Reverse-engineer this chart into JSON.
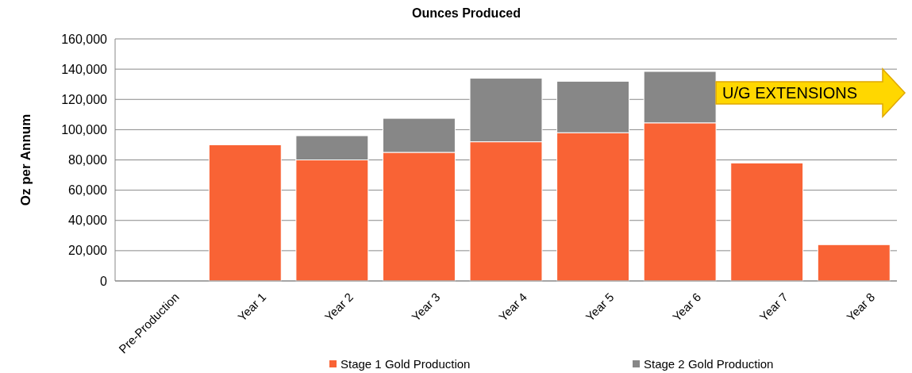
{
  "chart_data": {
    "type": "bar",
    "title": "Ounces Produced",
    "ylabel": "Oz per Annum",
    "categories": [
      "Pre-Production",
      "Year 1",
      "Year 2",
      "Year 3",
      "Year 4",
      "Year 5",
      "Year 6",
      "Year 7",
      "Year 8"
    ],
    "series": [
      {
        "name": "Stage 1 Gold Production",
        "color": "#f96335",
        "values": [
          0,
          90000,
          80000,
          85000,
          92000,
          98000,
          104500,
          78000,
          24000
        ]
      },
      {
        "name": "Stage 2 Gold Production",
        "color": "#878787",
        "values": [
          0,
          0,
          16000,
          22500,
          42000,
          34000,
          34000,
          0,
          0
        ]
      }
    ],
    "stacked": true,
    "ylim": [
      0,
      160000
    ],
    "yticks": [
      {
        "value": 0,
        "label": "0"
      },
      {
        "value": 20000,
        "label": "20,000"
      },
      {
        "value": 40000,
        "label": "40,000"
      },
      {
        "value": 60000,
        "label": "60,000"
      },
      {
        "value": 80000,
        "label": "80,000"
      },
      {
        "value": 100000,
        "label": "100,000"
      },
      {
        "value": 120000,
        "label": "120,000"
      },
      {
        "value": 140000,
        "label": "140,000"
      },
      {
        "value": 160000,
        "label": "160,000"
      }
    ],
    "grid": "y",
    "legend": "bottom",
    "annotations": [
      "U/G EXTENSIONS"
    ]
  }
}
